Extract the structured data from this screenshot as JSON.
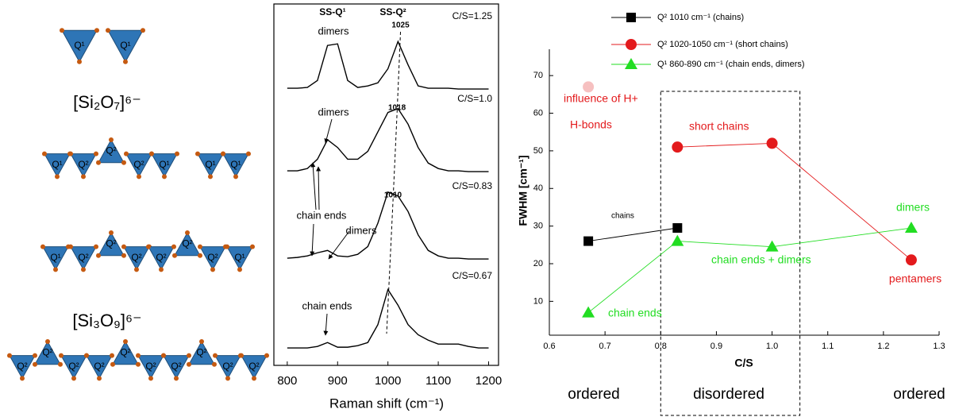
{
  "structures": {
    "rows": [
      {
        "tetrahedra": [
          "Q¹",
          "Q¹"
        ]
      },
      {
        "tetrahedra": [
          "Q¹",
          "Q²",
          "Q²",
          "Q²",
          "Q¹",
          "Q¹",
          "Q¹"
        ]
      },
      {
        "tetrahedra": [
          "Q¹",
          "Q²",
          "Q²",
          "Q²",
          "Q²",
          "Q²",
          "Q²",
          "Q¹"
        ]
      },
      {
        "tetrahedra": [
          "Q²",
          "Q²",
          "Q²",
          "Q²",
          "Q²",
          "Q²",
          "Q²",
          "Q²",
          "Q²",
          "Q²"
        ]
      }
    ],
    "formulas": [
      "[Si₂O₇]⁶⁻",
      "[Si₃O₉]⁶⁻"
    ]
  },
  "chart_data": [
    {
      "type": "line",
      "header": [
        "SS-Q¹",
        "SS-Q²"
      ],
      "xlabel": "Raman shift (cm⁻¹)",
      "x": [
        800,
        820,
        840,
        860,
        880,
        900,
        920,
        940,
        960,
        980,
        1000,
        1020,
        1040,
        1060,
        1080,
        1100,
        1120,
        1140,
        1160,
        1180,
        1200
      ],
      "xlim": [
        775,
        1215
      ],
      "xticks": [
        800,
        900,
        1000,
        1100,
        1200
      ],
      "ylim": [
        0,
        1
      ],
      "color": "#000000",
      "panels": [
        {
          "label": "C/S=1.25",
          "peak": 1025,
          "annotations": [
            "dimers"
          ],
          "values": [
            0.05,
            0.05,
            0.06,
            0.15,
            0.6,
            0.62,
            0.15,
            0.06,
            0.08,
            0.12,
            0.3,
            0.65,
            0.35,
            0.08,
            0.05,
            0.05,
            0.05,
            0.04,
            0.04,
            0.04,
            0.04
          ]
        },
        {
          "label": "C/S=1.0",
          "peak": 1018,
          "annotations": [
            "dimers"
          ],
          "values": [
            0.05,
            0.05,
            0.08,
            0.2,
            0.45,
            0.35,
            0.2,
            0.2,
            0.3,
            0.55,
            0.8,
            0.85,
            0.65,
            0.35,
            0.15,
            0.08,
            0.05,
            0.05,
            0.04,
            0.04,
            0.04
          ]
        },
        {
          "label": "C/S=0.83",
          "peak": 1010,
          "annotations": [
            "chain ends",
            "dimers"
          ],
          "values": [
            0.05,
            0.06,
            0.08,
            0.12,
            0.15,
            0.08,
            0.07,
            0.1,
            0.2,
            0.5,
            0.9,
            0.85,
            0.65,
            0.35,
            0.15,
            0.08,
            0.05,
            0.05,
            0.04,
            0.04,
            0.04
          ]
        },
        {
          "label": "C/S=0.67",
          "annotations": [
            "chain ends"
          ],
          "values": [
            0.05,
            0.05,
            0.05,
            0.07,
            0.12,
            0.06,
            0.06,
            0.08,
            0.12,
            0.35,
            0.8,
            0.6,
            0.35,
            0.22,
            0.15,
            0.1,
            0.1,
            0.1,
            0.07,
            0.05,
            0.05
          ]
        }
      ]
    },
    {
      "type": "scatter",
      "lines": true,
      "xlabel": "C/S",
      "ylabel": "FWHM [cm⁻¹]",
      "xlim": [
        0.6,
        1.3
      ],
      "xticks": [
        0.6,
        0.7,
        0.8,
        0.9,
        {
          "value": 1,
          "label": "1.0"
        },
        1.1,
        1.2,
        1.3
      ],
      "ylim": [
        1,
        77
      ],
      "yticks": [
        10,
        20,
        30,
        40,
        50,
        60,
        70
      ],
      "series": [
        {
          "name": "Q² 1010 cm⁻¹ (chains)",
          "color": "#000000",
          "marker": "square",
          "x": [
            0.67,
            0.83
          ],
          "values": [
            26,
            29.5
          ]
        },
        {
          "name": "Q² 1020-1050 cm⁻¹ (short chains)",
          "color": "#e31a1c",
          "marker": "circle",
          "x": [
            0.83,
            1.0,
            1.25
          ],
          "values": [
            51,
            52,
            21
          ]
        },
        {
          "name": "Q¹ 860-890 cm⁻¹ (chain ends, dimers)",
          "color": "#22dd22",
          "marker": "triangle",
          "x": [
            0.67,
            0.83,
            1.0,
            1.25
          ],
          "values": [
            7,
            26,
            24.5,
            29.5
          ]
        }
      ],
      "highlight": {
        "x": 0.67,
        "y": 67,
        "color": "#f6c0c0"
      },
      "region_x": [
        0.8,
        1.05
      ],
      "annotations": [
        {
          "text": "influence of H+",
          "color": "#e31a1c"
        },
        {
          "text": "H-bonds",
          "color": "#e31a1c"
        },
        {
          "text": "short chains",
          "color": "#e31a1c"
        },
        {
          "text": "chains",
          "color": "#000000"
        },
        {
          "text": "dimers",
          "color": "#22dd22"
        },
        {
          "text": "chain ends + dimers",
          "color": "#22dd22"
        },
        {
          "text": "pentamers",
          "color": "#e31a1c"
        },
        {
          "text": "chain ends",
          "color": "#22dd22"
        }
      ],
      "regions": [
        "ordered",
        "disordered",
        "ordered"
      ]
    }
  ]
}
